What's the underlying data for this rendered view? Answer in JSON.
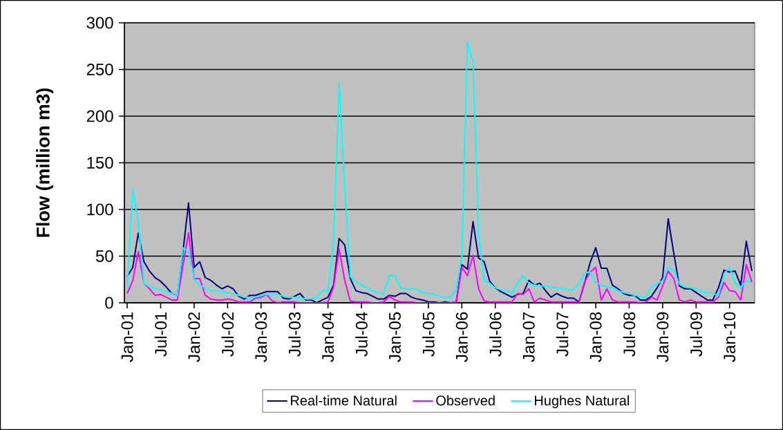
{
  "chart_data": {
    "type": "line",
    "ylabel": "Flow (million m3)",
    "categories": [
      "Jan-01",
      null,
      null,
      null,
      null,
      null,
      "Jul-01",
      null,
      null,
      null,
      null,
      null,
      "Jan-02",
      null,
      null,
      null,
      null,
      null,
      "Jul-02",
      null,
      null,
      null,
      null,
      null,
      "Jan-03",
      null,
      null,
      null,
      null,
      null,
      "Jul-03",
      null,
      null,
      null,
      null,
      null,
      "Jan-04",
      null,
      null,
      null,
      null,
      null,
      "Jul-04",
      null,
      null,
      null,
      null,
      null,
      "Jan-05",
      null,
      null,
      null,
      null,
      null,
      "Jul-05",
      null,
      null,
      null,
      null,
      null,
      "Jan-06",
      null,
      null,
      null,
      null,
      null,
      "Jul-06",
      null,
      null,
      null,
      null,
      null,
      "Jan-07",
      null,
      null,
      null,
      null,
      null,
      "Jul-07",
      null,
      null,
      null,
      null,
      null,
      "Jan-08",
      null,
      null,
      null,
      null,
      null,
      "Jul-08",
      null,
      null,
      null,
      null,
      null,
      "Jan-09",
      null,
      null,
      null,
      null,
      null,
      "Jul-09",
      null,
      null,
      null,
      null,
      null,
      "Jan-10",
      null,
      null,
      null,
      null
    ],
    "series": [
      {
        "name": "Real-time Natural",
        "color": "#000080",
        "values": [
          28,
          38,
          75,
          44,
          34,
          27,
          23,
          17,
          10,
          8,
          55,
          107,
          38,
          44,
          27,
          24,
          19,
          15,
          18,
          15,
          7,
          4,
          8,
          8,
          10,
          12,
          12,
          12,
          5,
          4,
          7,
          10,
          3,
          3,
          0,
          3,
          6,
          19,
          69,
          62,
          26,
          13,
          11,
          10,
          7,
          4,
          4,
          8,
          7,
          10,
          10,
          6,
          4,
          3,
          1,
          1,
          0,
          1,
          0,
          1,
          41,
          36,
          87,
          48,
          44,
          23,
          16,
          12,
          9,
          6,
          9,
          10,
          24,
          19,
          21,
          13,
          6,
          10,
          7,
          5,
          5,
          1,
          21,
          43,
          59,
          37,
          37,
          19,
          15,
          10,
          8,
          8,
          3,
          3,
          7,
          16,
          27,
          90,
          53,
          18,
          15,
          15,
          11,
          7,
          3,
          3,
          16,
          35,
          33,
          34,
          19,
          66,
          34
        ]
      },
      {
        "name": "Observed",
        "color": "#ff00ff",
        "values": [
          10,
          24,
          55,
          21,
          15,
          8,
          9,
          6,
          3,
          3,
          40,
          75,
          26,
          26,
          8,
          4,
          3,
          3,
          4,
          3,
          1,
          1,
          1,
          5,
          6,
          9,
          2,
          0,
          1,
          1,
          1,
          0,
          0,
          0,
          0,
          0,
          1,
          17,
          58,
          24,
          2,
          1,
          1,
          1,
          0,
          0,
          1,
          7,
          3,
          1,
          1,
          1,
          0,
          0,
          0,
          0,
          0,
          0,
          0,
          1,
          38,
          29,
          51,
          15,
          2,
          1,
          1,
          1,
          1,
          1,
          10,
          9,
          15,
          1,
          5,
          3,
          1,
          1,
          1,
          1,
          1,
          1,
          22,
          33,
          38,
          3,
          15,
          3,
          1,
          1,
          1,
          1,
          0,
          1,
          6,
          3,
          18,
          34,
          26,
          3,
          1,
          3,
          1,
          1,
          1,
          1,
          6,
          22,
          13,
          12,
          3,
          41,
          22
        ]
      },
      {
        "name": "Hughes Natural",
        "color": "#00ffff",
        "values": [
          16,
          122,
          85,
          21,
          17,
          16,
          14,
          12,
          10,
          8,
          59,
          55,
          26,
          19,
          16,
          13,
          13,
          12,
          11,
          10,
          8,
          6,
          6,
          6,
          8,
          9,
          9,
          9,
          7,
          6,
          6,
          6,
          4,
          4,
          6,
          13,
          13,
          66,
          236,
          125,
          28,
          23,
          19,
          16,
          13,
          11,
          10,
          29,
          29,
          16,
          15,
          15,
          15,
          11,
          10,
          9,
          7,
          6,
          6,
          15,
          50,
          279,
          259,
          72,
          24,
          21,
          16,
          14,
          13,
          10,
          21,
          29,
          21,
          19,
          18,
          18,
          17,
          16,
          16,
          14,
          14,
          21,
          32,
          33,
          22,
          19,
          17,
          16,
          13,
          11,
          10,
          8,
          7,
          5,
          17,
          20,
          24,
          38,
          35,
          20,
          17,
          16,
          15,
          12,
          11,
          10,
          8,
          31,
          38,
          21,
          16,
          24,
          21
        ]
      }
    ],
    "ylim": [
      0,
      300
    ],
    "yticks": [
      0,
      50,
      100,
      150,
      200,
      250,
      300
    ],
    "grid": "y",
    "legend": "bottom"
  }
}
